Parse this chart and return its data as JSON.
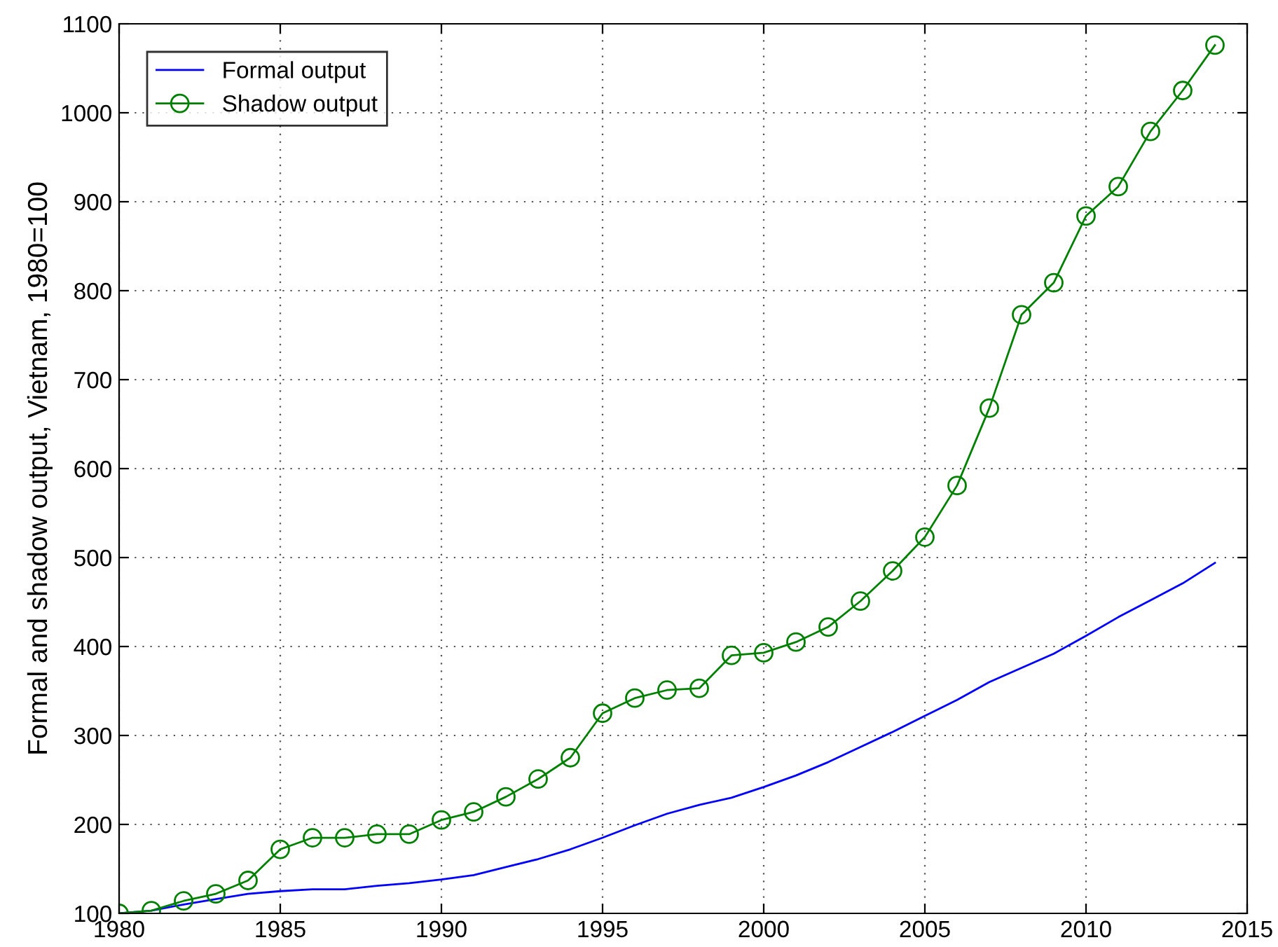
{
  "chart_data": {
    "type": "line",
    "ylabel": "Formal and shadow output, Vietnam, 1980=100",
    "x": [
      1980,
      1981,
      1982,
      1983,
      1984,
      1985,
      1986,
      1987,
      1988,
      1989,
      1990,
      1991,
      1992,
      1993,
      1994,
      1995,
      1996,
      1997,
      1998,
      1999,
      2000,
      2001,
      2002,
      2003,
      2004,
      2005,
      2006,
      2007,
      2008,
      2009,
      2010,
      2011,
      2012,
      2013,
      2014
    ],
    "series": [
      {
        "name": "Formal output",
        "color": "#0000ff",
        "marker": "none",
        "values": [
          100,
          103,
          110,
          116,
          122,
          125,
          127,
          127,
          131,
          134,
          138,
          143,
          152,
          161,
          172,
          185,
          199,
          212,
          222,
          230,
          242,
          255,
          270,
          287,
          304,
          322,
          340,
          360,
          376,
          392,
          412,
          433,
          452,
          471,
          494
        ]
      },
      {
        "name": "Shadow output",
        "color": "#008000",
        "marker": "circle",
        "values": [
          100,
          103,
          114,
          122,
          137,
          172,
          185,
          185,
          189,
          189,
          205,
          214,
          231,
          251,
          275,
          325,
          342,
          351,
          353,
          390,
          393,
          405,
          422,
          451,
          485,
          523,
          581,
          668,
          773,
          809,
          884,
          917,
          979,
          1025,
          1076
        ]
      }
    ],
    "xlim": [
      1980,
      2015
    ],
    "xticks": [
      1980,
      1985,
      1990,
      1995,
      2000,
      2005,
      2010,
      2015
    ],
    "ylim": [
      100,
      1100
    ],
    "yticks": [
      100,
      200,
      300,
      400,
      500,
      600,
      700,
      800,
      900,
      1000,
      1100
    ],
    "grid": true,
    "legend": "top left",
    "line_style": "solid"
  }
}
